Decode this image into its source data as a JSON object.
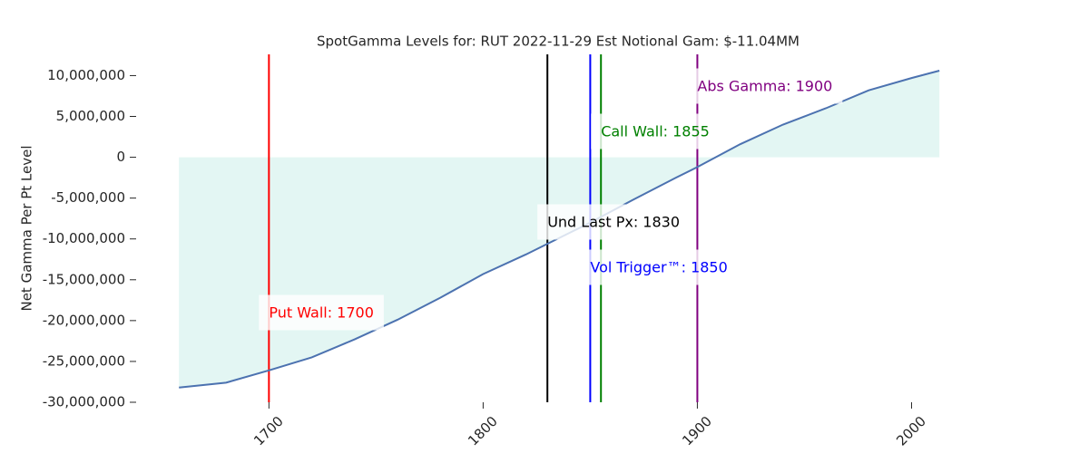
{
  "chart_data": {
    "type": "line",
    "title": "SpotGamma Levels for: RUT  2022-11-29 Est Notional Gam: $-11.04MM",
    "y_label": "Net Gamma Per Pt Level",
    "x": [
      1658,
      1680,
      1700,
      1720,
      1740,
      1760,
      1780,
      1800,
      1820,
      1830,
      1850,
      1870,
      1890,
      1900,
      1920,
      1940,
      1960,
      1980,
      2000,
      2013
    ],
    "series": [
      {
        "name": "Net Gamma",
        "color": "#4c72b0",
        "fill": "#e3f6f3",
        "values": [
          -28200000,
          -27600000,
          -26100000,
          -24500000,
          -22300000,
          -19900000,
          -17200000,
          -14300000,
          -11900000,
          -10600000,
          -8000000,
          -5200000,
          -2500000,
          -1200000,
          1600000,
          4000000,
          6000000,
          8200000,
          9700000,
          10600000
        ]
      }
    ],
    "levels": [
      {
        "label": "Put Wall: 1700",
        "value": 1700,
        "color": "#ff0000"
      },
      {
        "label": "Und Last Px: 1830",
        "value": 1830,
        "color": "#000000"
      },
      {
        "label": "Vol Trigger™: 1850",
        "value": 1850,
        "color": "#0000ff"
      },
      {
        "label": "Call Wall: 1855",
        "value": 1855,
        "color": "#008000"
      },
      {
        "label": "Abs Gamma: 1900",
        "value": 1900,
        "color": "#800080"
      }
    ],
    "xlim": [
      1638,
      2032
    ],
    "ylim": [
      -30000000,
      12600000
    ],
    "xticks": [
      1700,
      1800,
      1900,
      2000
    ],
    "yticks": [
      {
        "value": -30000000,
        "label": "-30,000,000"
      },
      {
        "value": -25000000,
        "label": "-25,000,000"
      },
      {
        "value": -20000000,
        "label": "-20,000,000"
      },
      {
        "value": -15000000,
        "label": "-15,000,000"
      },
      {
        "value": -10000000,
        "label": "-10,000,000"
      },
      {
        "value": -5000000,
        "label": "-5,000,000"
      },
      {
        "value": 0,
        "label": "0"
      },
      {
        "value": 5000000,
        "label": "5,000,000"
      },
      {
        "value": 10000000,
        "label": "10,000,000"
      }
    ]
  }
}
